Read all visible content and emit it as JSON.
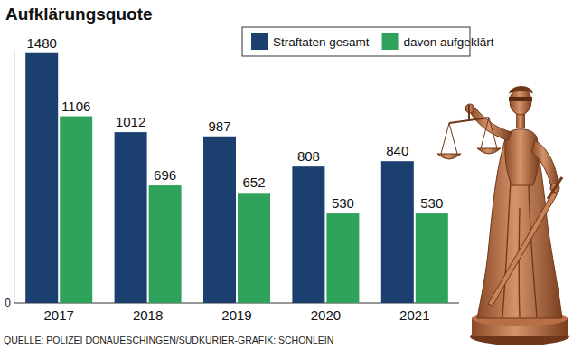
{
  "chart_data": {
    "type": "bar",
    "title": "Aufklärungsquote",
    "categories": [
      "2017",
      "2018",
      "2019",
      "2020",
      "2021"
    ],
    "series": [
      {
        "name": "Straftaten gesamt",
        "color": "#1b3f6e",
        "values": [
          1480,
          1012,
          987,
          808,
          840
        ]
      },
      {
        "name": "davon aufgeklärt",
        "color": "#2fa35b",
        "values": [
          1106,
          696,
          652,
          530,
          530
        ]
      }
    ],
    "ylim": [
      0,
      1500
    ],
    "yticks": [
      0
    ],
    "data_labels": true,
    "legend": "top-right",
    "source": "QUELLE: POLIZEI DONAUESCHINGEN/SÜDKURIER-GRAFIK: SCHÖNLEIN"
  }
}
